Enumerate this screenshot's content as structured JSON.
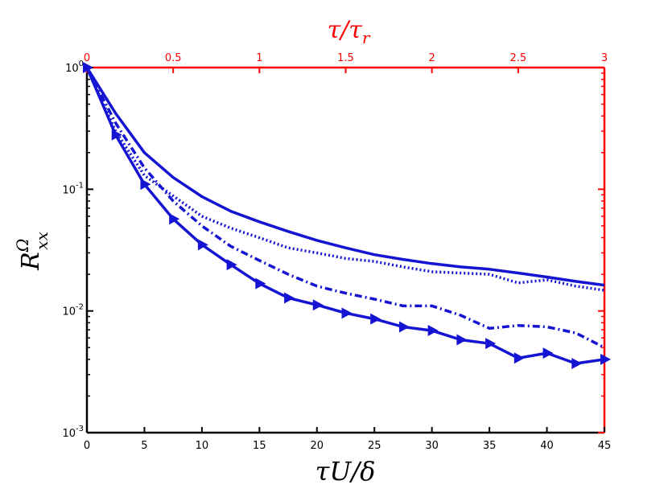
{
  "colors": {
    "series": "#1414d2",
    "top_axis": "#ff0000",
    "right_axis": "#ff0000",
    "axes": "#000000"
  },
  "chart_data": {
    "type": "line",
    "xlabel": "τU/δ",
    "ylabel": "R",
    "ylabel_sup": "Ω",
    "ylabel_sub": "xx",
    "top_xlabel": "τ/τ",
    "top_xlabel_sub": "r",
    "xlim": [
      0,
      45
    ],
    "ylim": [
      0.001,
      1
    ],
    "yscale": "log",
    "top_xlim": [
      0,
      3
    ],
    "x_ticks": [
      0,
      5,
      10,
      15,
      20,
      25,
      30,
      35,
      40,
      45
    ],
    "x_tick_labels": [
      "0",
      "5",
      "10",
      "15",
      "20",
      "25",
      "30",
      "35",
      "40",
      "45"
    ],
    "top_x_ticks": [
      0,
      0.5,
      1,
      1.5,
      2,
      2.5,
      3
    ],
    "top_x_tick_labels": [
      "0",
      "0.5",
      "1",
      "1.5",
      "2",
      "2.5",
      "3"
    ],
    "y_ticks": [
      {
        "value": 1,
        "base": "10",
        "exp": "0"
      },
      {
        "value": 0.1,
        "base": "10",
        "exp": "-1"
      },
      {
        "value": 0.01,
        "base": "10",
        "exp": "-2"
      },
      {
        "value": 0.001,
        "base": "10",
        "exp": "-3"
      }
    ],
    "grid": false,
    "series": [
      {
        "style": "solid",
        "marker": "none",
        "x": [
          0,
          2.5,
          5,
          7.5,
          10,
          12.5,
          15,
          17.5,
          20,
          22.5,
          25,
          27.5,
          30,
          32.5,
          35,
          37.5,
          40,
          42.5,
          45
        ],
        "values": [
          1,
          0.42,
          0.2,
          0.125,
          0.087,
          0.066,
          0.054,
          0.045,
          0.038,
          0.033,
          0.029,
          0.0265,
          0.0245,
          0.023,
          0.022,
          0.0205,
          0.019,
          0.0175,
          0.0163
        ]
      },
      {
        "style": "dotted",
        "marker": "none",
        "x": [
          0,
          2.5,
          5,
          7.5,
          10,
          12.5,
          15,
          17.5,
          20,
          22.5,
          25,
          27.5,
          30,
          32.5,
          35,
          37.5,
          40,
          42.5,
          45
        ],
        "values": [
          1,
          0.3,
          0.13,
          0.088,
          0.06,
          0.048,
          0.04,
          0.033,
          0.03,
          0.027,
          0.0255,
          0.023,
          0.021,
          0.0205,
          0.02,
          0.017,
          0.018,
          0.016,
          0.0148
        ]
      },
      {
        "style": "dashdot",
        "marker": "none",
        "x": [
          0,
          2.5,
          5,
          7.5,
          10,
          12.5,
          15,
          17.5,
          20,
          22.5,
          25,
          27.5,
          30,
          32.5,
          35,
          37.5,
          40,
          42.5,
          45
        ],
        "values": [
          1,
          0.35,
          0.15,
          0.08,
          0.05,
          0.034,
          0.026,
          0.02,
          0.016,
          0.014,
          0.0125,
          0.011,
          0.011,
          0.0092,
          0.0072,
          0.0076,
          0.0074,
          0.0066,
          0.005
        ]
      },
      {
        "style": "solid",
        "marker": "triangle-right",
        "x": [
          0,
          2.5,
          5,
          7.5,
          10,
          12.5,
          15,
          17.5,
          20,
          22.5,
          25,
          27.5,
          30,
          32.5,
          35,
          37.5,
          40,
          42.5,
          45
        ],
        "values": [
          1,
          0.28,
          0.11,
          0.057,
          0.035,
          0.024,
          0.0168,
          0.0128,
          0.0112,
          0.0096,
          0.0086,
          0.0074,
          0.0069,
          0.0058,
          0.0054,
          0.0041,
          0.0045,
          0.0037,
          0.004
        ]
      }
    ]
  }
}
